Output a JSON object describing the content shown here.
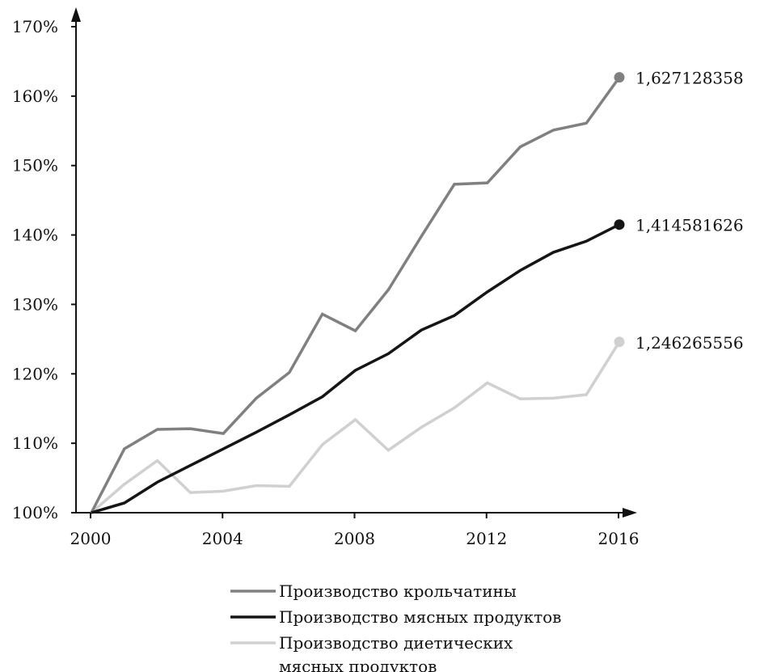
{
  "chart_data": {
    "type": "line",
    "x": [
      2000,
      2001,
      2002,
      2003,
      2004,
      2005,
      2006,
      2007,
      2008,
      2009,
      2010,
      2011,
      2012,
      2013,
      2014,
      2015,
      2016
    ],
    "xticks": [
      2000,
      2004,
      2008,
      2012,
      2016
    ],
    "xtick_labels": [
      "2000",
      "2004",
      "2008",
      "2012",
      "2016"
    ],
    "xlim": [
      2000,
      2016
    ],
    "ylim": [
      100,
      170
    ],
    "yticks": [
      100,
      110,
      120,
      130,
      140,
      150,
      160,
      170
    ],
    "ytick_labels": [
      "100%",
      "110%",
      "120%",
      "130%",
      "140%",
      "150%",
      "160%",
      "170%"
    ],
    "grid": false,
    "legend_position": "bottom",
    "series": [
      {
        "name": "Производство крольчатины",
        "color": "#808080",
        "values": [
          100,
          109.2,
          112,
          112.1,
          111.4,
          116.5,
          120.2,
          128.6,
          126.2,
          132.1,
          139.8,
          147.3,
          147.5,
          152.7,
          155.1,
          156.1,
          162.7
        ],
        "end_label": "1,627128358"
      },
      {
        "name": "Производство мясных продуктов",
        "color": "#151515",
        "values": [
          100,
          101.4,
          104.4,
          106.8,
          109.2,
          111.6,
          114.1,
          116.7,
          120.5,
          122.9,
          126.3,
          128.4,
          131.8,
          134.9,
          137.5,
          139.1,
          141.5
        ],
        "end_label": "1,414581626"
      },
      {
        "name_lines": [
          "Производство диетических",
          "мясных продуктов"
        ],
        "color": "#d0d0d0",
        "values": [
          100,
          104.1,
          107.5,
          102.9,
          103.1,
          103.9,
          103.8,
          109.8,
          113.4,
          109,
          112.3,
          115.1,
          118.7,
          116.4,
          116.5,
          117,
          124.6
        ],
        "end_label": "1,246265556"
      }
    ]
  }
}
